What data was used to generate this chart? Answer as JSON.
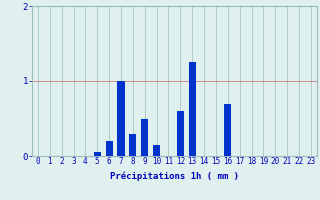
{
  "hours": [
    0,
    1,
    2,
    3,
    4,
    5,
    6,
    7,
    8,
    9,
    10,
    11,
    12,
    13,
    14,
    15,
    16,
    17,
    18,
    19,
    20,
    21,
    22,
    23
  ],
  "values": [
    0,
    0,
    0,
    0,
    0,
    0.05,
    0.2,
    1.0,
    0.3,
    0.5,
    0.15,
    0,
    0.6,
    1.25,
    0,
    0,
    0.7,
    0,
    0,
    0,
    0,
    0,
    0,
    0
  ],
  "bar_color": "#0033cc",
  "background_color": "#dff0ee",
  "grid_color": "#99bbbb",
  "text_color": "#0000bb",
  "xlabel": "Précipitations 1h ( mm )",
  "ylim": [
    0,
    2
  ],
  "yticks": [
    0,
    1,
    2
  ],
  "tick_fontsize": 5.5,
  "label_fontsize": 6.5
}
